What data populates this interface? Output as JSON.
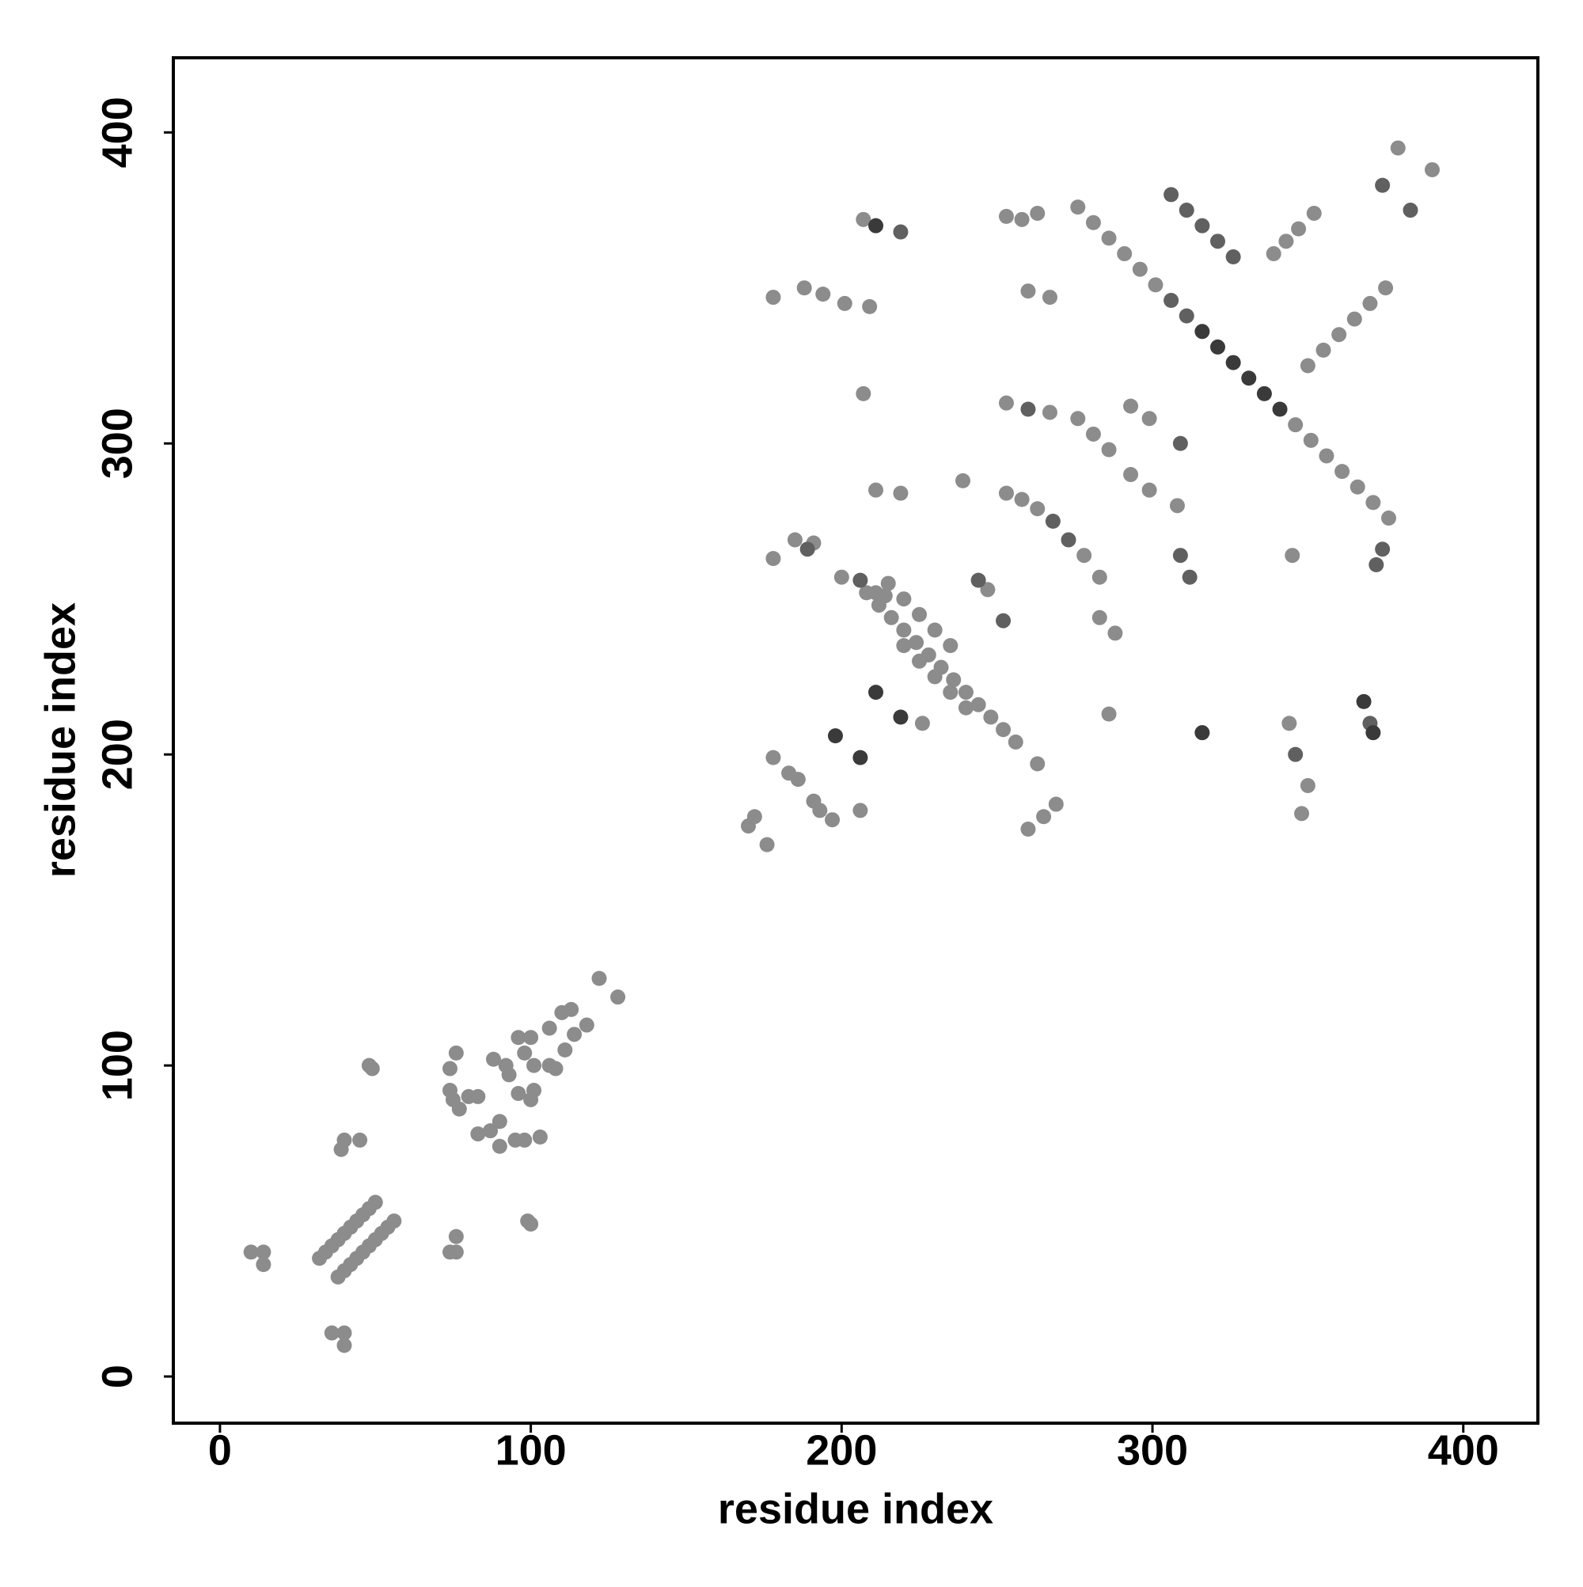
{
  "chart_data": {
    "type": "scatter",
    "xlabel": "residue index",
    "ylabel": "residue index",
    "xlim": [
      -15,
      424
    ],
    "ylim": [
      -15,
      424
    ],
    "xticks": [
      0,
      100,
      200,
      300,
      400
    ],
    "yticks": [
      0,
      100,
      200,
      300,
      400
    ],
    "grid": false,
    "series": [
      {
        "color": "#8c8c8c",
        "x": [
          10,
          14,
          14,
          32,
          34,
          36,
          38,
          40,
          42,
          44,
          46,
          48,
          50,
          38,
          40,
          42,
          44,
          46,
          48,
          50,
          52,
          54,
          56,
          36,
          40,
          40,
          40,
          45,
          39,
          48,
          49,
          74,
          76,
          76,
          74,
          74,
          76,
          77,
          80,
          83,
          75,
          83,
          87,
          90,
          90,
          95,
          98,
          103,
          88,
          92,
          93,
          96,
          100,
          98,
          101,
          96,
          100,
          101,
          106,
          108,
          106,
          110,
          113,
          111,
          114,
          118,
          122,
          128,
          99,
          100
        ],
        "values": [
          40,
          40,
          36,
          38,
          40,
          42,
          44,
          46,
          48,
          50,
          52,
          54,
          56,
          32,
          34,
          36,
          38,
          40,
          42,
          44,
          46,
          48,
          50,
          14,
          14,
          10,
          76,
          76,
          73,
          100,
          99,
          40,
          45,
          40,
          99,
          92,
          104,
          86,
          90,
          90,
          89,
          78,
          79,
          82,
          74,
          76,
          76,
          77,
          102,
          100,
          97,
          109,
          109,
          104,
          100,
          91,
          89,
          92,
          100,
          99,
          112,
          117,
          118,
          105,
          110,
          113,
          128,
          122,
          50,
          49
        ]
      },
      {
        "color": "#8c8c8c",
        "x": [
          170,
          172,
          176,
          178,
          183,
          186,
          191,
          193,
          197,
          206,
          178,
          185,
          191,
          178,
          188,
          194,
          201,
          209,
          207,
          207,
          211,
          219,
          226,
          239,
          247,
          253,
          258,
          263,
          260,
          267,
          253,
          267,
          253,
          258,
          263,
          278,
          283,
          263,
          260,
          265,
          269,
          276,
          281,
          286,
          283,
          288,
          286,
          293,
          299,
          293,
          299,
          308,
          345,
          350,
          348,
          344,
          379,
          390,
          200,
          211,
          214,
          208,
          212,
          216,
          220,
          224,
          228,
          232,
          236,
          240,
          244,
          248,
          252,
          256,
          220,
          225,
          230,
          235,
          240,
          215,
          220,
          225,
          230,
          235,
          350,
          355,
          360,
          365,
          370,
          375,
          339,
          343,
          347,
          352,
          276,
          281,
          286,
          291,
          296,
          301,
          346,
          351,
          356,
          361,
          366,
          371,
          376
        ],
        "values": [
          177,
          180,
          171,
          199,
          194,
          192,
          185,
          182,
          179,
          182,
          263,
          269,
          268,
          347,
          350,
          348,
          345,
          344,
          372,
          316,
          285,
          284,
          210,
          288,
          253,
          373,
          372,
          374,
          349,
          347,
          313,
          310,
          284,
          282,
          279,
          264,
          257,
          197,
          176,
          180,
          184,
          308,
          303,
          298,
          244,
          239,
          213,
          312,
          308,
          290,
          285,
          280,
          264,
          190,
          181,
          210,
          395,
          388,
          257,
          252,
          251,
          252,
          248,
          244,
          240,
          236,
          232,
          228,
          224,
          220,
          216,
          212,
          208,
          204,
          235,
          230,
          225,
          220,
          215,
          255,
          250,
          245,
          240,
          235,
          325,
          330,
          335,
          340,
          345,
          350,
          361,
          365,
          369,
          374,
          376,
          371,
          366,
          361,
          356,
          351,
          306,
          301,
          296,
          291,
          286,
          281,
          276
        ]
      },
      {
        "color": "#606060",
        "x": [
          306,
          311,
          316,
          321,
          326,
          189,
          206,
          260,
          273,
          268,
          309,
          309,
          312,
          346,
          372,
          374,
          374,
          383,
          219,
          244,
          252,
          370,
          306,
          311
        ],
        "values": [
          380,
          375,
          370,
          365,
          360,
          266,
          256,
          311,
          269,
          275,
          300,
          264,
          257,
          200,
          261,
          266,
          383,
          375,
          368,
          256,
          243,
          210,
          346,
          341
        ]
      },
      {
        "color": "#3a3a3a",
        "x": [
          316,
          321,
          326,
          331,
          336,
          341,
          198,
          206,
          211,
          219,
          316,
          368,
          371,
          211
        ],
        "values": [
          336,
          331,
          326,
          321,
          316,
          311,
          206,
          199,
          220,
          212,
          207,
          217,
          207,
          370
        ]
      }
    ]
  }
}
